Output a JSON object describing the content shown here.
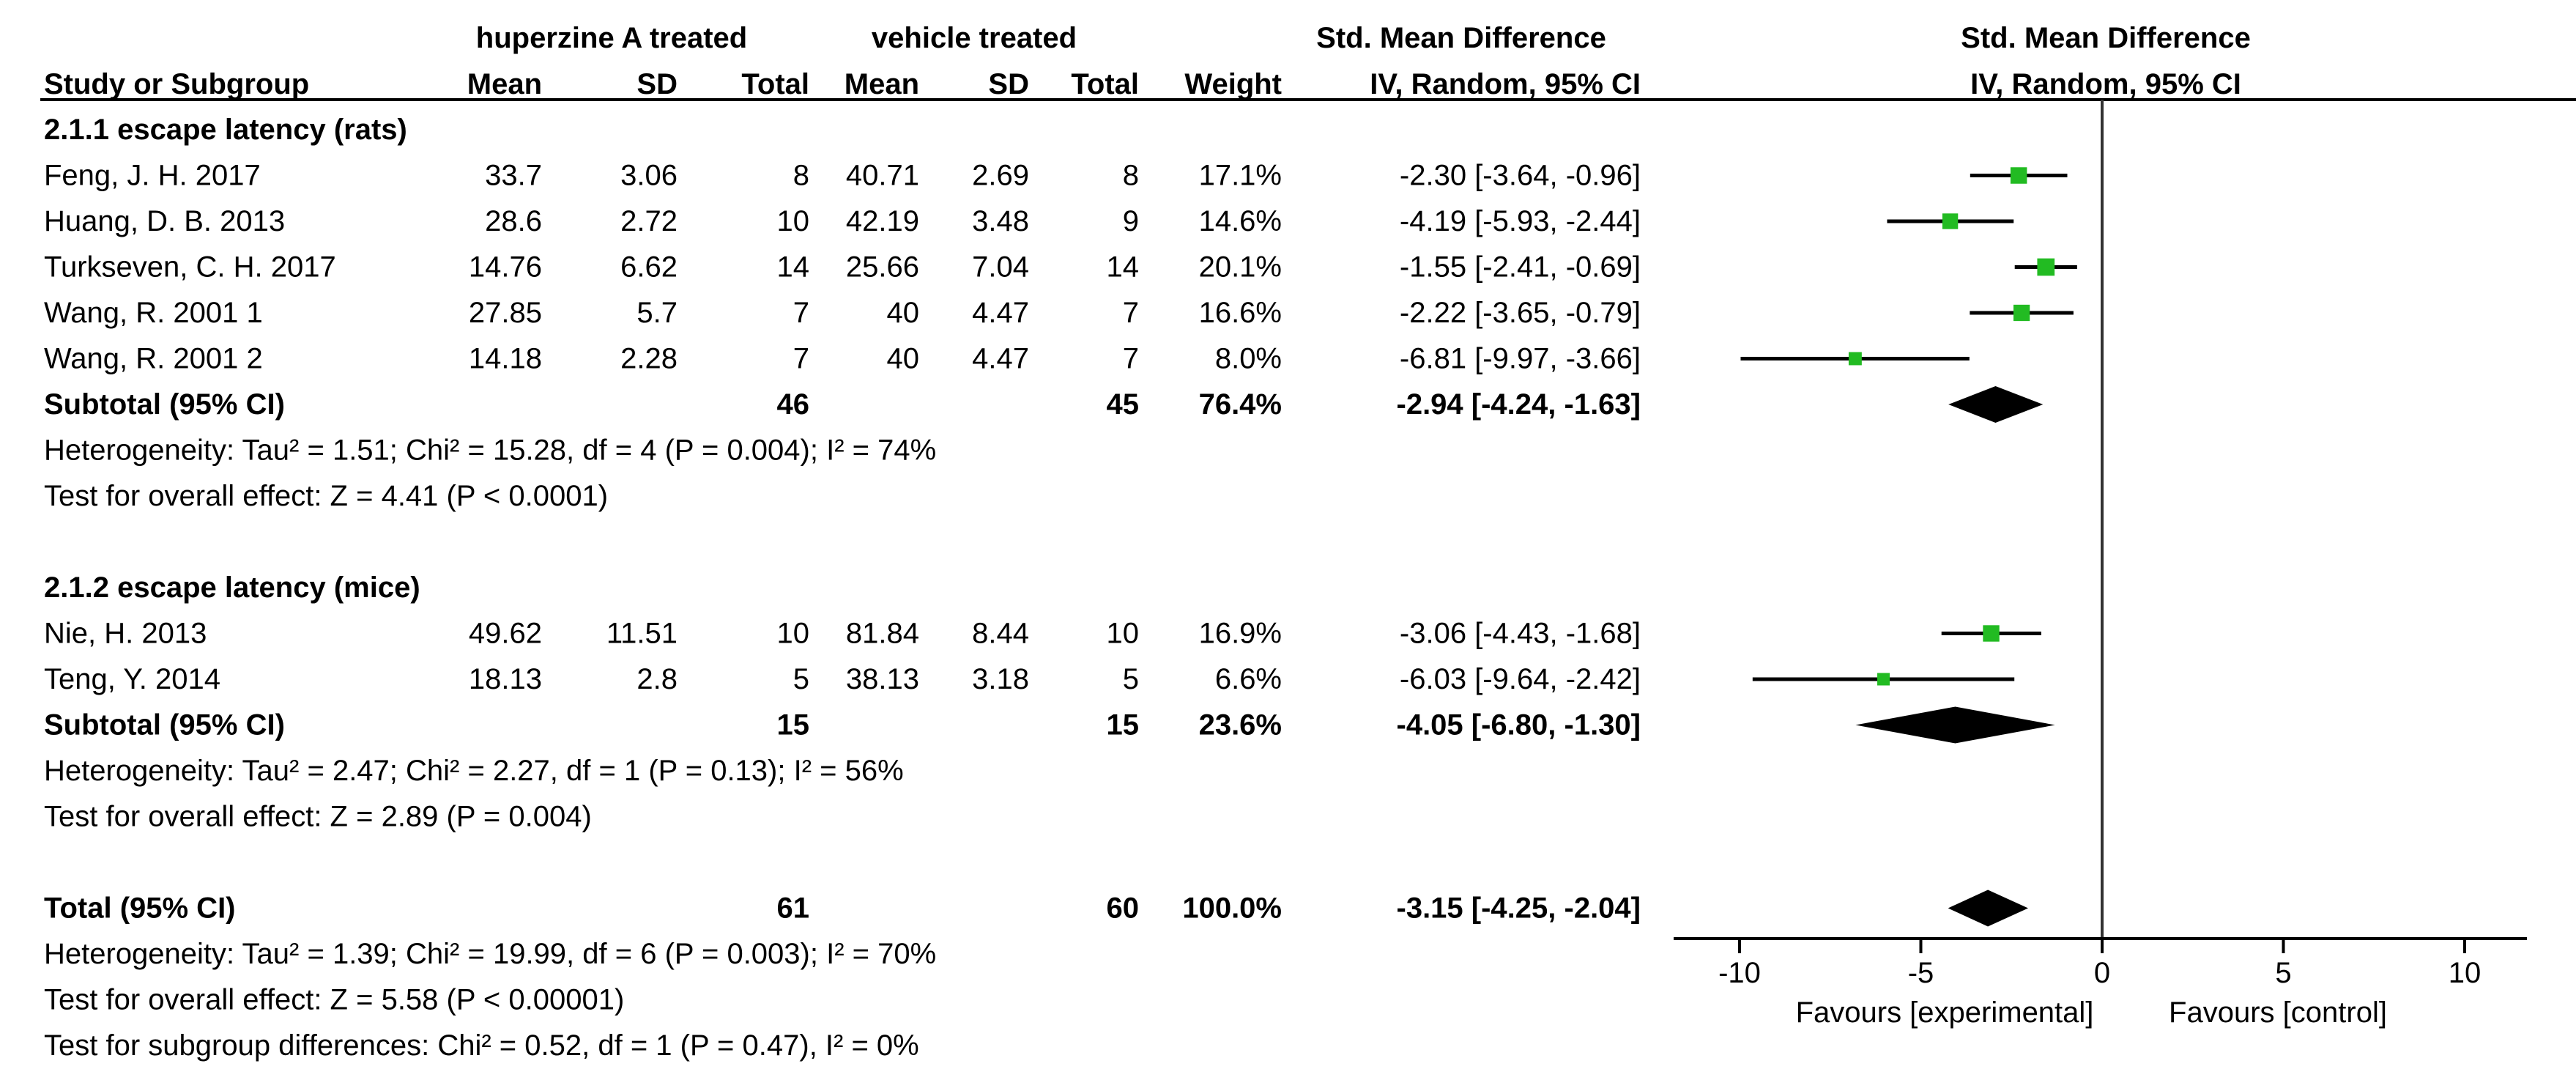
{
  "header": {
    "group1": "huperzine A treated",
    "group2": "vehicle treated",
    "smd_title": "Std. Mean Difference",
    "plot_title": "Std. Mean Difference",
    "col_study": "Study or Subgroup",
    "col_mean1": "Mean",
    "col_sd1": "SD",
    "col_total1": "Total",
    "col_mean2": "Mean",
    "col_sd2": "SD",
    "col_total2": "Total",
    "col_weight": "Weight",
    "col_ci": "IV, Random, 95% CI",
    "plot_ci": "IV, Random, 95% CI"
  },
  "rows": [
    {
      "kind": "group",
      "label": "2.1.1 escape latency (rats)"
    },
    {
      "kind": "study",
      "study": "Feng, J. H. 2017",
      "mean1": "33.7",
      "sd1": "3.06",
      "total1": "8",
      "mean2": "40.71",
      "sd2": "2.69",
      "total2": "8",
      "weight": "17.1%",
      "ci": "-2.30 [-3.64, -0.96]"
    },
    {
      "kind": "study",
      "study": "Huang, D. B. 2013",
      "mean1": "28.6",
      "sd1": "2.72",
      "total1": "10",
      "mean2": "42.19",
      "sd2": "3.48",
      "total2": "9",
      "weight": "14.6%",
      "ci": "-4.19 [-5.93, -2.44]"
    },
    {
      "kind": "study",
      "study": "Turkseven, C. H. 2017",
      "mean1": "14.76",
      "sd1": "6.62",
      "total1": "14",
      "mean2": "25.66",
      "sd2": "7.04",
      "total2": "14",
      "weight": "20.1%",
      "ci": "-1.55 [-2.41, -0.69]"
    },
    {
      "kind": "study",
      "study": "Wang, R. 2001 1",
      "mean1": "27.85",
      "sd1": "5.7",
      "total1": "7",
      "mean2": "40",
      "sd2": "4.47",
      "total2": "7",
      "weight": "16.6%",
      "ci": "-2.22 [-3.65, -0.79]"
    },
    {
      "kind": "study",
      "study": "Wang, R. 2001 2",
      "mean1": "14.18",
      "sd1": "2.28",
      "total1": "7",
      "mean2": "40",
      "sd2": "4.47",
      "total2": "7",
      "weight": "8.0%",
      "ci": "-6.81 [-9.97, -3.66]"
    },
    {
      "kind": "subtotal",
      "study": "Subtotal (95% CI)",
      "total1": "46",
      "total2": "45",
      "weight": "76.4%",
      "ci": "-2.94 [-4.24, -1.63]"
    },
    {
      "kind": "note",
      "label": "Heterogeneity: Tau² = 1.51; Chi² = 15.28, df = 4 (P = 0.004); I² = 74%"
    },
    {
      "kind": "note",
      "label": "Test for overall effect: Z = 4.41 (P < 0.0001)"
    },
    {
      "kind": "blank"
    },
    {
      "kind": "group",
      "label": "2.1.2 escape latency (mice)"
    },
    {
      "kind": "study",
      "study": "Nie, H. 2013",
      "mean1": "49.62",
      "sd1": "11.51",
      "total1": "10",
      "mean2": "81.84",
      "sd2": "8.44",
      "total2": "10",
      "weight": "16.9%",
      "ci": "-3.06 [-4.43, -1.68]"
    },
    {
      "kind": "study",
      "study": "Teng, Y. 2014",
      "mean1": "18.13",
      "sd1": "2.8",
      "total1": "5",
      "mean2": "38.13",
      "sd2": "3.18",
      "total2": "5",
      "weight": "6.6%",
      "ci": "-6.03 [-9.64, -2.42]"
    },
    {
      "kind": "subtotal",
      "study": "Subtotal (95% CI)",
      "total1": "15",
      "total2": "15",
      "weight": "23.6%",
      "ci": "-4.05 [-6.80, -1.30]"
    },
    {
      "kind": "note",
      "label": "Heterogeneity: Tau² = 2.47; Chi² = 2.27, df = 1 (P = 0.13); I² = 56%"
    },
    {
      "kind": "note",
      "label": "Test for overall effect: Z = 2.89 (P = 0.004)"
    },
    {
      "kind": "blank"
    },
    {
      "kind": "subtotal",
      "study": "Total (95% CI)",
      "total1": "61",
      "total2": "60",
      "weight": "100.0%",
      "ci": "-3.15 [-4.25, -2.04]"
    },
    {
      "kind": "note",
      "label": "Heterogeneity: Tau² = 1.39; Chi² = 19.99, df = 6 (P = 0.003); I² = 70%"
    },
    {
      "kind": "note",
      "label": "Test for overall effect: Z = 5.58 (P < 0.00001)"
    },
    {
      "kind": "note",
      "label": "Test for subgroup differences: Chi² = 0.52, df = 1 (P = 0.47), I² = 0%"
    }
  ],
  "chart_data": {
    "type": "forest",
    "title": "Std. Mean Difference",
    "subtitle": "IV, Random, 95% CI",
    "xlim": [
      -12,
      12
    ],
    "xticks": [
      -10,
      -5,
      0,
      5,
      10
    ],
    "xlabel_left": "Favours [experimental]",
    "xlabel_right": "Favours [control]",
    "studies": [
      {
        "name": "Feng, J. H. 2017",
        "smd": -2.3,
        "lo": -3.64,
        "hi": -0.96,
        "weight": 17.1
      },
      {
        "name": "Huang, D. B. 2013",
        "smd": -4.19,
        "lo": -5.93,
        "hi": -2.44,
        "weight": 14.6
      },
      {
        "name": "Turkseven, C. H. 2017",
        "smd": -1.55,
        "lo": -2.41,
        "hi": -0.69,
        "weight": 20.1
      },
      {
        "name": "Wang, R. 2001 1",
        "smd": -2.22,
        "lo": -3.65,
        "hi": -0.79,
        "weight": 16.6
      },
      {
        "name": "Wang, R. 2001 2",
        "smd": -6.81,
        "lo": -9.97,
        "hi": -3.66,
        "weight": 8.0
      },
      {
        "name": "Nie, H. 2013",
        "smd": -3.06,
        "lo": -4.43,
        "hi": -1.68,
        "weight": 16.9
      },
      {
        "name": "Teng, Y. 2014",
        "smd": -6.03,
        "lo": -9.64,
        "hi": -2.42,
        "weight": 6.6
      }
    ],
    "summaries": [
      {
        "name": "Subtotal (95% CI) rats",
        "smd": -2.94,
        "lo": -4.24,
        "hi": -1.63
      },
      {
        "name": "Subtotal (95% CI) mice",
        "smd": -4.05,
        "lo": -6.8,
        "hi": -1.3
      },
      {
        "name": "Total (95% CI)",
        "smd": -3.15,
        "lo": -4.25,
        "hi": -2.04
      }
    ],
    "colors": {
      "marker": "#22bb22",
      "line": "#000000",
      "diamond": "#000000"
    }
  }
}
